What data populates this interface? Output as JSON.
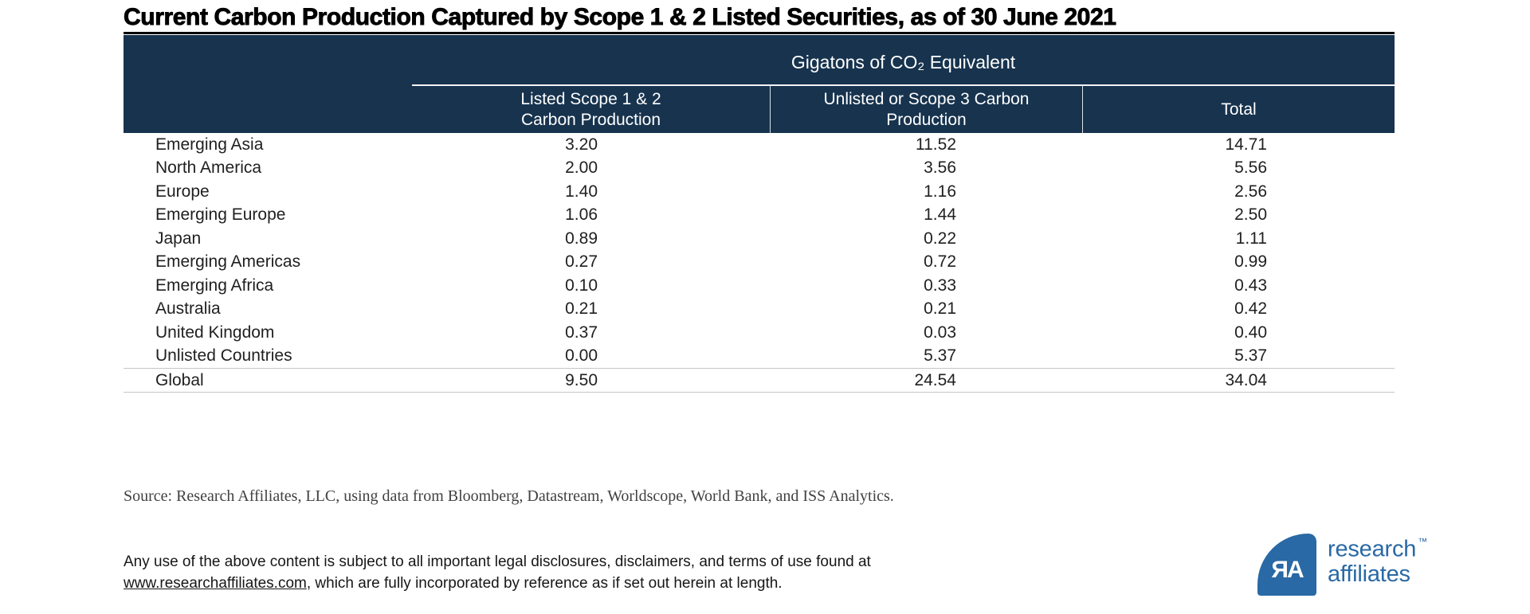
{
  "title": "Current Carbon Production Captured by Scope 1 & 2 Listed Securities, as of 30 June 2021",
  "chart_data": {
    "type": "table",
    "title": "Current Carbon Production Captured by Scope 1 & 2 Listed Securities, as of 30 June 2021",
    "group_header": "Gigatons of CO₂ Equivalent",
    "columns": [
      "Listed Scope 1 & 2 Carbon Production",
      "Unlisted or Scope 3 Carbon Production",
      "Total"
    ],
    "rows": [
      {
        "region": "Emerging Asia",
        "values": [
          3.2,
          11.52,
          14.71
        ]
      },
      {
        "region": "North America",
        "values": [
          2.0,
          3.56,
          5.56
        ]
      },
      {
        "region": "Europe",
        "values": [
          1.4,
          1.16,
          2.56
        ]
      },
      {
        "region": "Emerging Europe",
        "values": [
          1.06,
          1.44,
          2.5
        ]
      },
      {
        "region": "Japan",
        "values": [
          0.89,
          0.22,
          1.11
        ]
      },
      {
        "region": "Emerging Americas",
        "values": [
          0.27,
          0.72,
          0.99
        ]
      },
      {
        "region": "Emerging Africa",
        "values": [
          0.1,
          0.33,
          0.43
        ]
      },
      {
        "region": "Australia",
        "values": [
          0.21,
          0.21,
          0.42
        ]
      },
      {
        "region": "United Kingdom",
        "values": [
          0.37,
          0.03,
          0.4
        ]
      },
      {
        "region": "Unlisted Countries",
        "values": [
          0.0,
          5.37,
          5.37
        ]
      }
    ],
    "total_row": {
      "region": "Global",
      "values": [
        9.5,
        24.54,
        34.04
      ]
    }
  },
  "header_display": {
    "col1": {
      "line1": "Listed Scope 1 & 2",
      "line2": "Carbon Production"
    },
    "col2": {
      "line1": "Unlisted or Scope 3 Carbon",
      "line2": "Production"
    },
    "col3": {
      "line1": "Total",
      "line2": ""
    }
  },
  "source": "Source: Research Affiliates, LLC, using data from Bloomberg, Datastream, Worldscope, World Bank, and ISS Analytics.",
  "disclaimer": {
    "line1": "Any use of the above content is subject to all important legal disclosures, disclaimers, and terms of use found at",
    "link": "www.researchaffiliates.com",
    "after_link": ", which are fully incorporated by reference as if set out herein at length."
  },
  "logo": {
    "monogram": "ЯA",
    "name_line1": "research",
    "name_line2": "affiliates",
    "trademark": "™",
    "brand_color": "#2969a5"
  },
  "colors": {
    "header_navy": "#17334E",
    "divider_gray": "#c6c6c6",
    "title_black": "#000000"
  }
}
